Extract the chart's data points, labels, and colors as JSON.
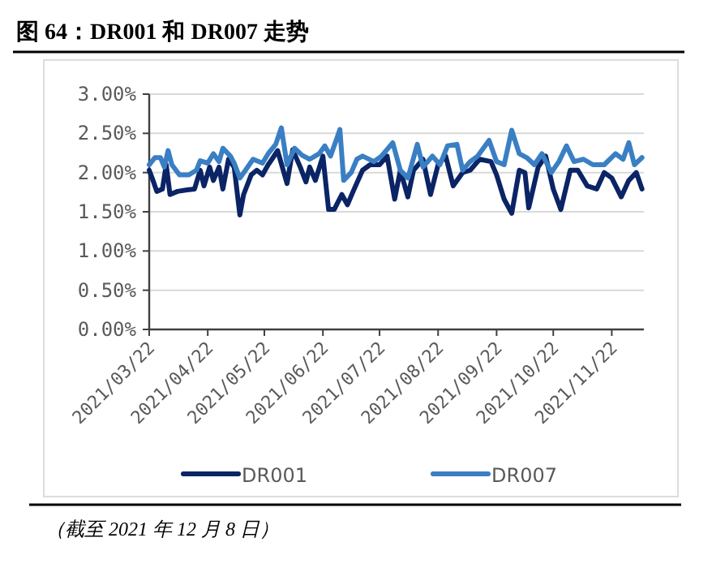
{
  "chart_data": {
    "type": "line",
    "title": "图 64：DR001 和 DR007 走势",
    "annotations": [
      "（截至 2021 年 12 月 8 日）"
    ],
    "xlim": [
      "2021-03-22",
      "2021-12-09"
    ],
    "xticks": [
      {
        "value": "2021-03-22",
        "label": "2021/03/22"
      },
      {
        "value": "2021-04-22",
        "label": "2021/04/22"
      },
      {
        "value": "2021-05-22",
        "label": "2021/05/22"
      },
      {
        "value": "2021-06-22",
        "label": "2021/06/22"
      },
      {
        "value": "2021-07-22",
        "label": "2021/07/22"
      },
      {
        "value": "2021-08-22",
        "label": "2021/08/22"
      },
      {
        "value": "2021-09-22",
        "label": "2021/09/22"
      },
      {
        "value": "2021-10-22",
        "label": "2021/10/22"
      },
      {
        "value": "2021-11-22",
        "label": "2021/11/22"
      }
    ],
    "ylim": [
      0,
      3
    ],
    "yticks": [
      {
        "value": 0,
        "label": "0.00%"
      },
      {
        "value": 0.5,
        "label": "0.50%"
      },
      {
        "value": 1,
        "label": "1.00%"
      },
      {
        "value": 1.5,
        "label": "1.50%"
      },
      {
        "value": 2,
        "label": "2.00%"
      },
      {
        "value": 2.5,
        "label": "2.50%"
      },
      {
        "value": 3,
        "label": "3.00%"
      }
    ],
    "grid": "y",
    "legend": "bottom",
    "line_style": "solid",
    "series": [
      {
        "name": "DR001",
        "color": "#0b2466",
        "x": [
          "2021-03-22",
          "2021-03-24",
          "2021-03-26",
          "2021-03-29",
          "2021-03-31",
          "2021-04-02",
          "2021-04-06",
          "2021-04-11",
          "2021-04-15",
          "2021-04-18",
          "2021-04-20",
          "2021-04-23",
          "2021-04-25",
          "2021-04-28",
          "2021-04-30",
          "2021-05-03",
          "2021-05-06",
          "2021-05-09",
          "2021-05-11",
          "2021-05-15",
          "2021-05-18",
          "2021-05-21",
          "2021-05-24",
          "2021-05-26",
          "2021-05-29",
          "2021-06-03",
          "2021-06-06",
          "2021-06-10",
          "2021-06-13",
          "2021-06-15",
          "2021-06-18",
          "2021-06-22",
          "2021-06-25",
          "2021-06-28",
          "2021-07-02",
          "2021-07-05",
          "2021-07-08",
          "2021-07-13",
          "2021-07-17",
          "2021-07-22",
          "2021-07-26",
          "2021-07-30",
          "2021-08-02",
          "2021-08-06",
          "2021-08-09",
          "2021-08-14",
          "2021-08-18",
          "2021-08-22",
          "2021-08-26",
          "2021-08-30",
          "2021-09-04",
          "2021-09-08",
          "2021-09-13",
          "2021-09-19",
          "2021-09-22",
          "2021-09-26",
          "2021-09-30",
          "2021-10-04",
          "2021-10-07",
          "2021-10-09",
          "2021-10-14",
          "2021-10-18",
          "2021-10-22",
          "2021-10-26",
          "2021-10-31",
          "2021-11-04",
          "2021-11-09",
          "2021-11-14",
          "2021-11-18",
          "2021-11-22",
          "2021-11-27",
          "2021-12-01",
          "2021-12-05",
          "2021-12-08"
        ],
        "values": [
          2.03,
          1.9,
          1.76,
          1.79,
          2.1,
          1.72,
          1.76,
          1.78,
          1.79,
          2.03,
          1.83,
          2.07,
          1.9,
          2.07,
          1.79,
          2.17,
          2.07,
          1.46,
          1.72,
          1.97,
          2.03,
          1.97,
          2.1,
          2.17,
          2.28,
          1.86,
          2.29,
          2.07,
          1.88,
          2.07,
          1.9,
          2.21,
          1.53,
          1.53,
          1.72,
          1.59,
          1.76,
          2.03,
          2.1,
          2.1,
          2.21,
          1.66,
          2.03,
          1.69,
          2.03,
          2.17,
          1.72,
          2.1,
          2.21,
          1.83,
          2.0,
          2.03,
          2.17,
          2.14,
          1.97,
          1.66,
          1.48,
          2.03,
          2.0,
          1.55,
          2.07,
          2.21,
          1.79,
          1.53,
          2.03,
          2.03,
          1.83,
          1.79,
          2.0,
          1.93,
          1.69,
          1.9,
          2.0,
          1.79
        ]
      },
      {
        "name": "DR007",
        "color": "#3a7fc4",
        "x": [
          "2021-03-22",
          "2021-03-25",
          "2021-03-28",
          "2021-03-30",
          "2021-04-01",
          "2021-04-03",
          "2021-04-07",
          "2021-04-12",
          "2021-04-16",
          "2021-04-18",
          "2021-04-22",
          "2021-04-25",
          "2021-04-28",
          "2021-04-30",
          "2021-05-04",
          "2021-05-06",
          "2021-05-09",
          "2021-05-12",
          "2021-05-16",
          "2021-05-21",
          "2021-05-24",
          "2021-05-28",
          "2021-05-31",
          "2021-06-03",
          "2021-06-07",
          "2021-06-11",
          "2021-06-15",
          "2021-06-20",
          "2021-06-23",
          "2021-06-26",
          "2021-06-29",
          "2021-07-01",
          "2021-07-03",
          "2021-07-07",
          "2021-07-10",
          "2021-07-13",
          "2021-07-19",
          "2021-07-23",
          "2021-07-29",
          "2021-08-02",
          "2021-08-06",
          "2021-08-11",
          "2021-08-14",
          "2021-08-19",
          "2021-08-23",
          "2021-08-27",
          "2021-09-01",
          "2021-09-04",
          "2021-09-08",
          "2021-09-12",
          "2021-09-18",
          "2021-09-22",
          "2021-09-26",
          "2021-09-30",
          "2021-10-04",
          "2021-10-08",
          "2021-10-12",
          "2021-10-16",
          "2021-10-21",
          "2021-10-25",
          "2021-10-29",
          "2021-11-02",
          "2021-11-07",
          "2021-11-12",
          "2021-11-18",
          "2021-11-24",
          "2021-11-28",
          "2021-12-01",
          "2021-12-04",
          "2021-12-08"
        ],
        "values": [
          2.1,
          2.19,
          2.19,
          2.07,
          2.28,
          2.1,
          1.97,
          1.97,
          2.03,
          2.15,
          2.12,
          2.24,
          2.14,
          2.31,
          2.21,
          2.12,
          1.93,
          2.03,
          2.17,
          2.12,
          2.24,
          2.36,
          2.57,
          2.1,
          2.31,
          2.22,
          2.17,
          2.24,
          2.34,
          2.21,
          2.41,
          2.55,
          1.9,
          2.0,
          2.17,
          2.21,
          2.14,
          2.21,
          2.38,
          2.03,
          1.93,
          2.36,
          2.07,
          2.21,
          2.1,
          2.34,
          2.36,
          2.03,
          2.14,
          2.21,
          2.41,
          2.14,
          2.1,
          2.54,
          2.24,
          2.19,
          2.1,
          2.24,
          2.0,
          2.14,
          2.34,
          2.14,
          2.17,
          2.1,
          2.1,
          2.24,
          2.17,
          2.38,
          2.1,
          2.19
        ]
      }
    ]
  }
}
